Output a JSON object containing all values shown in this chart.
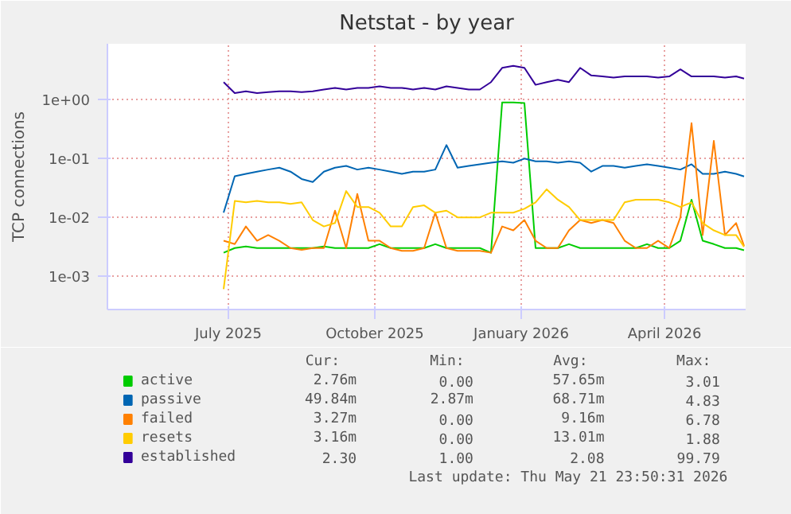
{
  "chart_data": {
    "type": "line",
    "title": "Netstat - by year",
    "ylabel": "TCP connections",
    "log": "y",
    "grid": true,
    "legend": "bottom",
    "marker": "none",
    "line_style": "solid",
    "ylim": [
      0.00027,
      9
    ],
    "yticks": [
      {
        "value": 0.001,
        "label": "1e-03"
      },
      {
        "value": 0.01,
        "label": "1e-02"
      },
      {
        "value": 0.1,
        "label": "1e-01"
      },
      {
        "value": 1,
        "label": "1e+00"
      }
    ],
    "xlim": [
      "2025-04-16",
      "2026-05-22"
    ],
    "xticks": [
      {
        "value": "2025-07-01",
        "label": "July 2025"
      },
      {
        "value": "2025-10-01",
        "label": "October 2025"
      },
      {
        "value": "2026-01-01",
        "label": "January 2026"
      },
      {
        "value": "2026-04-01",
        "label": "April 2026"
      }
    ],
    "x": [
      "2025-06-28",
      "2025-07-05",
      "2025-07-12",
      "2025-07-19",
      "2025-07-26",
      "2025-08-02",
      "2025-08-09",
      "2025-08-16",
      "2025-08-23",
      "2025-08-30",
      "2025-09-06",
      "2025-09-13",
      "2025-09-20",
      "2025-09-27",
      "2025-10-04",
      "2025-10-11",
      "2025-10-18",
      "2025-10-25",
      "2025-11-01",
      "2025-11-08",
      "2025-11-15",
      "2025-11-22",
      "2025-11-29",
      "2025-12-06",
      "2025-12-13",
      "2025-12-20",
      "2025-12-27",
      "2026-01-03",
      "2026-01-10",
      "2026-01-17",
      "2026-01-24",
      "2026-01-31",
      "2026-02-07",
      "2026-02-14",
      "2026-02-21",
      "2026-02-28",
      "2026-03-07",
      "2026-03-14",
      "2026-03-21",
      "2026-03-28",
      "2026-04-04",
      "2026-04-11",
      "2026-04-18",
      "2026-04-25",
      "2026-05-02",
      "2026-05-09",
      "2026-05-16",
      "2026-05-21"
    ],
    "series": [
      {
        "name": "active",
        "color": "#00cc00",
        "values": [
          0.0025,
          0.003,
          0.0032,
          0.003,
          0.003,
          0.003,
          0.003,
          0.003,
          0.003,
          0.0032,
          0.003,
          0.003,
          0.003,
          0.003,
          0.0035,
          0.003,
          0.003,
          0.003,
          0.003,
          0.0035,
          0.003,
          0.003,
          0.003,
          0.003,
          0.0025,
          0.9,
          0.9,
          0.88,
          0.003,
          0.003,
          0.003,
          0.0035,
          0.003,
          0.003,
          0.003,
          0.003,
          0.003,
          0.003,
          0.0035,
          0.003,
          0.003,
          0.004,
          0.02,
          0.004,
          0.0035,
          0.003,
          0.003,
          0.00276
        ]
      },
      {
        "name": "passive",
        "color": "#0066b3",
        "values": [
          0.012,
          0.05,
          0.055,
          0.06,
          0.065,
          0.07,
          0.06,
          0.045,
          0.04,
          0.06,
          0.07,
          0.075,
          0.065,
          0.07,
          0.065,
          0.06,
          0.055,
          0.06,
          0.06,
          0.065,
          0.17,
          0.07,
          0.075,
          0.08,
          0.085,
          0.09,
          0.085,
          0.1,
          0.09,
          0.09,
          0.085,
          0.09,
          0.085,
          0.06,
          0.075,
          0.075,
          0.07,
          0.075,
          0.08,
          0.075,
          0.07,
          0.065,
          0.08,
          0.055,
          0.055,
          0.06,
          0.055,
          0.0498
        ]
      },
      {
        "name": "failed",
        "color": "#ff8000",
        "values": [
          0.004,
          0.0035,
          0.007,
          0.004,
          0.005,
          0.004,
          0.003,
          0.0028,
          0.003,
          0.003,
          0.013,
          0.003,
          0.025,
          0.004,
          0.004,
          0.003,
          0.0027,
          0.0027,
          0.003,
          0.012,
          0.003,
          0.0027,
          0.0027,
          0.0027,
          0.0025,
          0.007,
          0.006,
          0.009,
          0.004,
          0.003,
          0.003,
          0.006,
          0.009,
          0.008,
          0.009,
          0.008,
          0.004,
          0.003,
          0.003,
          0.004,
          0.003,
          0.01,
          0.4,
          0.005,
          0.2,
          0.005,
          0.008,
          0.00327
        ]
      },
      {
        "name": "resets",
        "color": "#ffcc00",
        "values": [
          0.0006,
          0.019,
          0.018,
          0.019,
          0.018,
          0.018,
          0.017,
          0.018,
          0.009,
          0.007,
          0.008,
          0.028,
          0.015,
          0.015,
          0.012,
          0.007,
          0.007,
          0.015,
          0.016,
          0.012,
          0.013,
          0.01,
          0.01,
          0.01,
          0.012,
          0.012,
          0.012,
          0.014,
          0.018,
          0.03,
          0.02,
          0.015,
          0.009,
          0.009,
          0.009,
          0.009,
          0.018,
          0.02,
          0.02,
          0.02,
          0.018,
          0.015,
          0.018,
          0.008,
          0.006,
          0.005,
          0.005,
          0.00316
        ]
      },
      {
        "name": "established",
        "color": "#330099",
        "values": [
          2.0,
          1.3,
          1.4,
          1.3,
          1.35,
          1.4,
          1.4,
          1.35,
          1.4,
          1.5,
          1.6,
          1.5,
          1.6,
          1.6,
          1.7,
          1.6,
          1.6,
          1.5,
          1.6,
          1.5,
          1.7,
          1.6,
          1.5,
          1.5,
          2.0,
          3.5,
          3.8,
          3.5,
          1.8,
          2.0,
          2.2,
          2.0,
          3.5,
          2.6,
          2.5,
          2.4,
          2.5,
          2.5,
          2.5,
          2.4,
          2.5,
          3.3,
          2.5,
          2.5,
          2.5,
          2.4,
          2.5,
          2.3
        ]
      }
    ],
    "annotations": [
      "Cur:",
      "Min:",
      "Avg:",
      "Max:",
      "2.76m",
      "0.00",
      "57.65m",
      "3.01",
      "49.84m",
      "2.87m",
      "68.71m",
      "4.83",
      "3.27m",
      "0.00",
      "9.16m",
      "6.78",
      "3.16m",
      "0.00",
      "13.01m",
      "1.88",
      "2.30",
      "1.00",
      "2.08",
      "99.79",
      "Last update: Thu May 21 23:50:31 2026"
    ]
  }
}
